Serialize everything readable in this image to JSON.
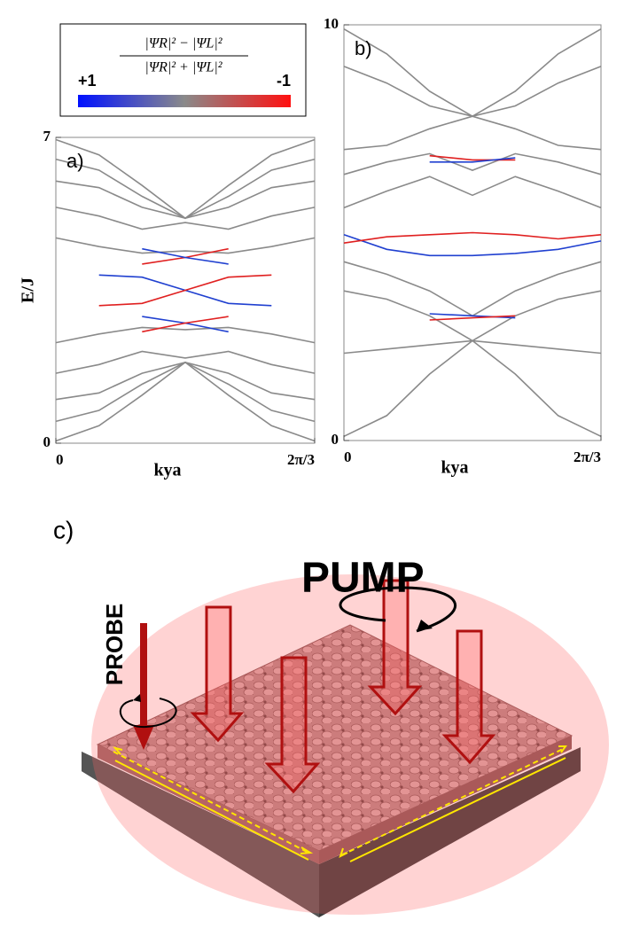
{
  "chart_data": [
    {
      "type": "line",
      "panel_label": "a)",
      "ylabel": "E/J",
      "xlabel": "kya",
      "x": [
        0,
        0.349,
        0.698,
        1.047,
        1.396,
        1.745,
        2.094
      ],
      "xlim": [
        0,
        2.094
      ],
      "xticks": [
        0,
        {
          "value": 2.094,
          "label": "2π/3"
        }
      ],
      "ylim": [
        0,
        7
      ],
      "yticks": [
        0,
        7
      ],
      "series": [
        {
          "color": "#8a8a8a",
          "values": [
            6.95,
            6.6,
            5.9,
            5.15,
            5.9,
            6.6,
            6.95
          ]
        },
        {
          "color": "#8a8a8a",
          "values": [
            6.5,
            6.25,
            5.65,
            5.15,
            5.65,
            6.25,
            6.5
          ]
        },
        {
          "color": "#8a8a8a",
          "values": [
            6.0,
            5.85,
            5.4,
            5.15,
            5.4,
            5.85,
            6.0
          ]
        },
        {
          "color": "#8a8a8a",
          "values": [
            5.4,
            5.2,
            4.9,
            5.05,
            4.9,
            5.2,
            5.4
          ]
        },
        {
          "color": "#8a8a8a",
          "values": [
            4.7,
            4.5,
            4.35,
            4.4,
            4.35,
            4.5,
            4.7
          ]
        },
        {
          "color": "#8a8a8a",
          "values": [
            0.05,
            0.4,
            1.1,
            1.85,
            1.1,
            0.4,
            0.05
          ]
        },
        {
          "color": "#8a8a8a",
          "values": [
            0.5,
            0.75,
            1.35,
            1.85,
            1.35,
            0.75,
            0.5
          ]
        },
        {
          "color": "#8a8a8a",
          "values": [
            1.0,
            1.15,
            1.6,
            1.85,
            1.6,
            1.15,
            1.0
          ]
        },
        {
          "color": "#8a8a8a",
          "values": [
            1.6,
            1.8,
            2.1,
            1.95,
            2.1,
            1.8,
            1.6
          ]
        },
        {
          "color": "#8a8a8a",
          "values": [
            2.3,
            2.5,
            2.65,
            2.6,
            2.65,
            2.5,
            2.3
          ]
        },
        {
          "color": "#2040d0",
          "values": [
            null,
            3.85,
            3.8,
            3.5,
            3.2,
            3.15,
            null
          ]
        },
        {
          "color": "#e02020",
          "values": [
            null,
            3.15,
            3.2,
            3.5,
            3.8,
            3.85,
            null
          ]
        },
        {
          "color": "#e02020",
          "values": [
            null,
            null,
            4.1,
            4.25,
            4.45,
            null,
            null
          ]
        },
        {
          "color": "#2040d0",
          "values": [
            null,
            null,
            4.45,
            4.25,
            4.1,
            null,
            null
          ]
        },
        {
          "color": "#2040d0",
          "values": [
            null,
            null,
            2.9,
            2.75,
            2.55,
            null,
            null
          ]
        },
        {
          "color": "#e02020",
          "values": [
            null,
            null,
            2.55,
            2.75,
            2.9,
            null,
            null
          ]
        }
      ]
    },
    {
      "type": "line",
      "panel_label": "b)",
      "xlabel": "kya",
      "x": [
        0,
        0.349,
        0.698,
        1.047,
        1.396,
        1.745,
        2.094
      ],
      "xlim": [
        0,
        2.094
      ],
      "xticks": [
        0,
        {
          "value": 2.094,
          "label": "2π/3"
        }
      ],
      "ylim": [
        0,
        10
      ],
      "yticks": [
        0,
        10
      ],
      "series": [
        {
          "color": "#8a8a8a",
          "values": [
            9.9,
            9.3,
            8.4,
            7.8,
            8.4,
            9.3,
            9.9
          ]
        },
        {
          "color": "#8a8a8a",
          "values": [
            9.0,
            8.6,
            8.05,
            7.8,
            8.05,
            8.6,
            9.0
          ]
        },
        {
          "color": "#8a8a8a",
          "values": [
            7.0,
            7.1,
            7.5,
            7.8,
            7.5,
            7.1,
            7.0
          ]
        },
        {
          "color": "#8a8a8a",
          "values": [
            6.4,
            6.7,
            6.9,
            6.5,
            6.9,
            6.7,
            6.4
          ]
        },
        {
          "color": "#8a8a8a",
          "values": [
            5.6,
            6.0,
            6.35,
            5.9,
            6.35,
            6.0,
            5.6
          ]
        },
        {
          "color": "#8a8a8a",
          "values": [
            4.3,
            4.0,
            3.6,
            3.0,
            3.6,
            4.0,
            4.3
          ]
        },
        {
          "color": "#8a8a8a",
          "values": [
            3.6,
            3.4,
            3.0,
            2.4,
            3.0,
            3.4,
            3.6
          ]
        },
        {
          "color": "#8a8a8a",
          "values": [
            2.1,
            2.2,
            2.3,
            2.4,
            2.3,
            2.2,
            2.1
          ]
        },
        {
          "color": "#8a8a8a",
          "values": [
            0.1,
            0.6,
            1.6,
            2.4,
            1.6,
            0.6,
            0.1
          ]
        },
        {
          "color": "#2040d0",
          "values": [
            4.95,
            4.6,
            4.45,
            4.45,
            4.5,
            4.6,
            4.8
          ]
        },
        {
          "color": "#e02020",
          "values": [
            4.75,
            4.9,
            4.95,
            5.0,
            4.95,
            4.85,
            4.95
          ]
        },
        {
          "color": "#e02020",
          "values": [
            null,
            null,
            6.85,
            6.75,
            6.75,
            null,
            null
          ]
        },
        {
          "color": "#2040d0",
          "values": [
            null,
            null,
            6.7,
            6.7,
            6.8,
            null,
            null
          ]
        },
        {
          "color": "#2040d0",
          "values": [
            null,
            null,
            3.05,
            3.0,
            2.95,
            null,
            null
          ]
        },
        {
          "color": "#e02020",
          "values": [
            null,
            null,
            2.9,
            2.95,
            3.0,
            null,
            null
          ]
        }
      ]
    }
  ],
  "colorbar": {
    "numerator": "|ΨR|² − |ΨL|²",
    "denominator": "|ΨR|² + |ΨL|²",
    "max_label": "+1",
    "min_label": "-1"
  },
  "diagram": {
    "panel_label": "c)",
    "pump": "PUMP",
    "probe": "PROBE"
  }
}
